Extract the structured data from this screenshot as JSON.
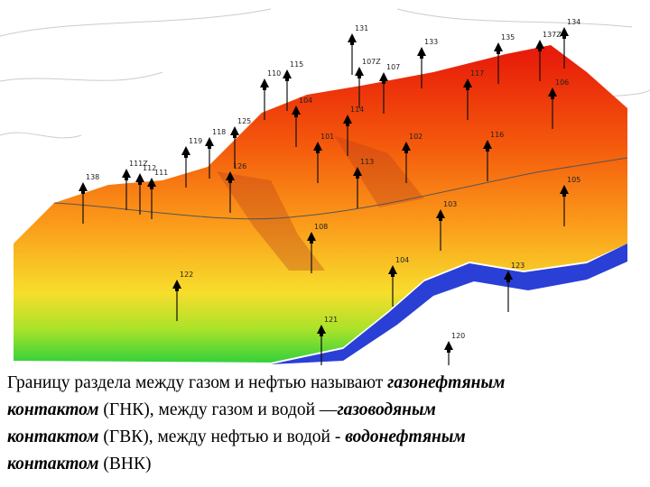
{
  "figure": {
    "wells": [
      "131",
      "134",
      "133",
      "135",
      "137Z",
      "107Z",
      "115",
      "110",
      "107",
      "117",
      "106",
      "114",
      "104",
      "125",
      "118",
      "119",
      "101",
      "102",
      "116",
      "111Z",
      "112",
      "111",
      "126",
      "113",
      "138",
      "105",
      "103",
      "108",
      "104",
      "122",
      "123",
      "121",
      "120"
    ]
  },
  "text": {
    "lines": [
      [
        {
          "t": "Границу раздела между газом и нефтью называют ",
          "em": false
        },
        {
          "t": "газонефтяным",
          "em": true
        }
      ],
      [
        {
          "t": "контактом",
          "em": true
        },
        {
          "t": " (ГНК), между газом и водой —",
          "em": false
        },
        {
          "t": "газоводяным",
          "em": true
        }
      ],
      [
        {
          "t": "контактом",
          "em": true
        },
        {
          "t": " (ГВК), между нефтью и водой - ",
          "em": false
        },
        {
          "t": "водонефтяным",
          "em": true
        }
      ],
      [
        {
          "t": "контактом",
          "em": true
        },
        {
          "t": " (ВНК)",
          "em": false
        }
      ]
    ]
  }
}
